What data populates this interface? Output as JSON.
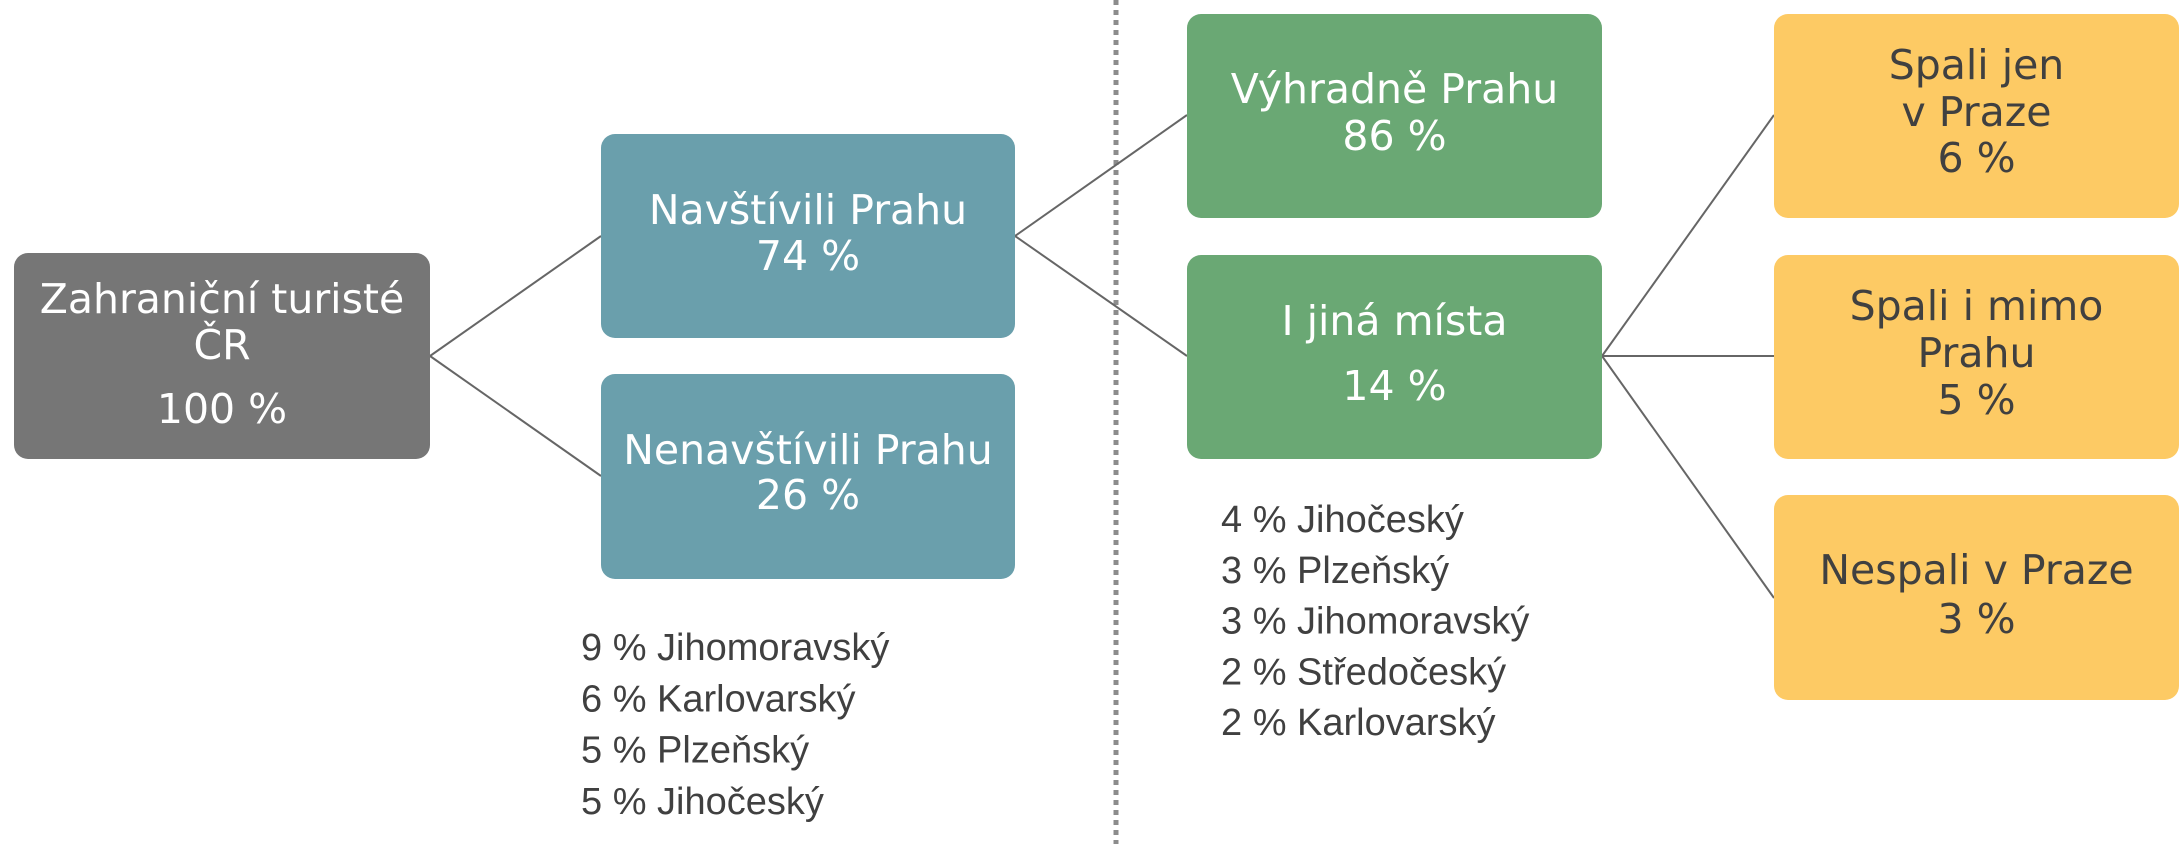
{
  "nodes": [
    {
      "lines": [
        "Zahraniční turisté",
        "ČR",
        "100 %"
      ]
    },
    {
      "lines": [
        "Navštívili Prahu",
        "74 %"
      ]
    },
    {
      "lines": [
        "Nenavštívili Prahu",
        "26 %"
      ]
    },
    {
      "lines": [
        "Výhradně Prahu",
        "86 %"
      ]
    },
    {
      "lines": [
        "I jiná místa",
        "14 %"
      ]
    },
    {
      "lines": [
        "Spali jen",
        "v Praze",
        "6 %"
      ]
    },
    {
      "lines": [
        "Spali i mimo",
        "Prahu",
        "5 %"
      ]
    },
    {
      "lines": [
        "Nespali v Praze",
        "3 %"
      ]
    }
  ],
  "lists": [
    [
      "9 % Jihomoravský",
      "6 % Karlovarský",
      "5 % Plzeňský",
      "5 % Jihočeský"
    ],
    [
      "4 % Jihočeský",
      "3 % Plzeňský",
      "3 % Jihomoravský",
      "2 % Středočeský",
      "2 % Karlovarský"
    ]
  ]
}
